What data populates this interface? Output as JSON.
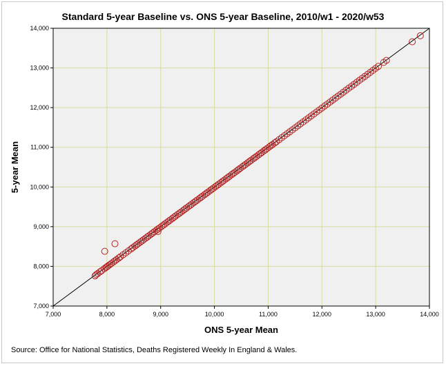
{
  "chart_data": {
    "type": "scatter",
    "title": "Standard 5-year Baseline vs. ONS 5-year Baseline, 2010/w1 - 2020/w53",
    "xlabel": "ONS 5-year Mean",
    "ylabel": "5-year Mean",
    "xlim": [
      7000,
      14000
    ],
    "ylim": [
      7000,
      14000
    ],
    "xticks": [
      7000,
      8000,
      9000,
      10000,
      11000,
      12000,
      13000,
      14000
    ],
    "yticks": [
      7000,
      8000,
      9000,
      10000,
      11000,
      12000,
      13000,
      14000
    ],
    "xtick_labels": [
      "7,000",
      "8,000",
      "9,000",
      "10,000",
      "11,000",
      "12,000",
      "13,000",
      "14,000"
    ],
    "ytick_labels": [
      "7,000",
      "8,000",
      "9,000",
      "10,000",
      "11,000",
      "12,000",
      "13,000",
      "14,000"
    ],
    "grid": true,
    "reference_line": "y = x",
    "marker": "open circle",
    "marker_color": "#b22222",
    "plot_background": "#f0f0f0",
    "grid_color": "#d8dca0",
    "series": [
      {
        "x": [
          7780,
          7800,
          7830,
          7870,
          7900,
          7950,
          7980,
          8000,
          8020,
          8050,
          8080,
          8120,
          8150,
          8180,
          8220,
          8250,
          8300,
          8350,
          8400,
          8450,
          8480,
          8520,
          8550,
          8580,
          8620,
          8650,
          8680,
          8720,
          8750,
          8780,
          8820,
          8850,
          8880,
          8920,
          8950,
          8980,
          9020,
          9050,
          9080,
          9120,
          9150,
          9180,
          9220,
          9250,
          9280,
          9320,
          9350,
          9380,
          9420,
          9450,
          9480,
          9520,
          9550,
          9580,
          9620,
          9650,
          9680,
          9720,
          9750,
          9780,
          9820,
          9850,
          9880,
          9920,
          9950,
          9980,
          10020,
          10050,
          10080,
          10120,
          10150,
          10180,
          10220,
          10250,
          10280,
          10320,
          10350,
          10380,
          10420,
          10450,
          10480,
          10520,
          10550,
          10580,
          10620,
          10650,
          10680,
          10720,
          10750,
          10780,
          10820,
          10850,
          10880,
          10920,
          10950,
          10980,
          11020,
          11050,
          11080,
          11120,
          11150,
          11200,
          11250,
          11300,
          11350,
          11400,
          11450,
          11500,
          11550,
          11600,
          11650,
          11700,
          11750,
          11800,
          11850,
          11900,
          11950,
          12000,
          12050,
          12100,
          12150,
          12200,
          12250,
          12300,
          12350,
          12400,
          12450,
          12500,
          12550,
          12600,
          12650,
          12700,
          12750,
          12800,
          12850,
          12900,
          12950,
          13000,
          13050,
          13150,
          13200,
          13680,
          13830,
          7960,
          8150,
          8950
        ],
        "y": [
          7760,
          7790,
          7820,
          7860,
          7890,
          7940,
          7970,
          7990,
          8010,
          8040,
          8070,
          8110,
          8140,
          8170,
          8210,
          8240,
          8290,
          8340,
          8390,
          8440,
          8470,
          8510,
          8540,
          8570,
          8610,
          8640,
          8670,
          8710,
          8740,
          8770,
          8810,
          8840,
          8870,
          8910,
          8940,
          8970,
          9010,
          9040,
          9070,
          9110,
          9140,
          9170,
          9210,
          9240,
          9270,
          9310,
          9340,
          9370,
          9410,
          9440,
          9470,
          9510,
          9540,
          9570,
          9610,
          9640,
          9670,
          9710,
          9740,
          9770,
          9810,
          9840,
          9870,
          9910,
          9940,
          9970,
          10010,
          10040,
          10070,
          10110,
          10140,
          10170,
          10210,
          10240,
          10270,
          10310,
          10340,
          10370,
          10410,
          10440,
          10470,
          10510,
          10540,
          10570,
          10610,
          10640,
          10670,
          10710,
          10740,
          10770,
          10810,
          10840,
          10870,
          10910,
          10940,
          10970,
          11010,
          11040,
          11070,
          11110,
          11140,
          11190,
          11240,
          11290,
          11340,
          11390,
          11440,
          11490,
          11540,
          11590,
          11640,
          11690,
          11740,
          11790,
          11840,
          11890,
          11940,
          11990,
          12040,
          12090,
          12140,
          12190,
          12240,
          12290,
          12340,
          12390,
          12440,
          12490,
          12540,
          12590,
          12640,
          12690,
          12740,
          12790,
          12840,
          12890,
          12940,
          12990,
          13040,
          13140,
          13190,
          13660,
          13810,
          8380,
          8570,
          8880
        ]
      }
    ]
  },
  "source_text": "Source: Office for National Statistics, Deaths Registered Weekly In England & Wales."
}
